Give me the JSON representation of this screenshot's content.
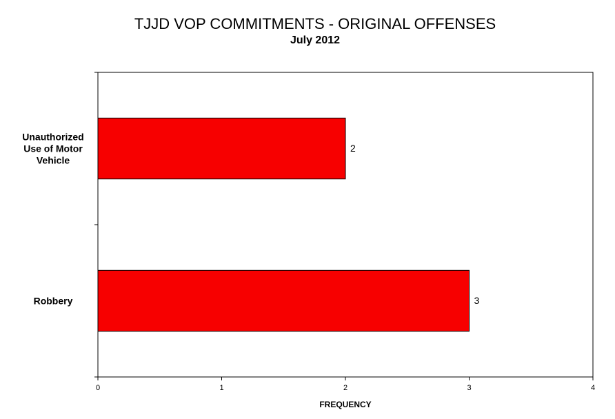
{
  "chart_data": {
    "type": "hbar",
    "title": "TJJD VOP COMMITMENTS  - ORIGINAL OFFENSES",
    "subtitle": "July 2012",
    "x_label": "FREQUENCY",
    "categories": [
      "Unauthorized Use of Motor Vehicle",
      "Robbery"
    ],
    "values": [
      2,
      3
    ],
    "color": "#f70000",
    "xlim": [
      0,
      4
    ],
    "xticks": [
      0,
      1,
      2,
      3,
      4
    ],
    "grid": false
  }
}
